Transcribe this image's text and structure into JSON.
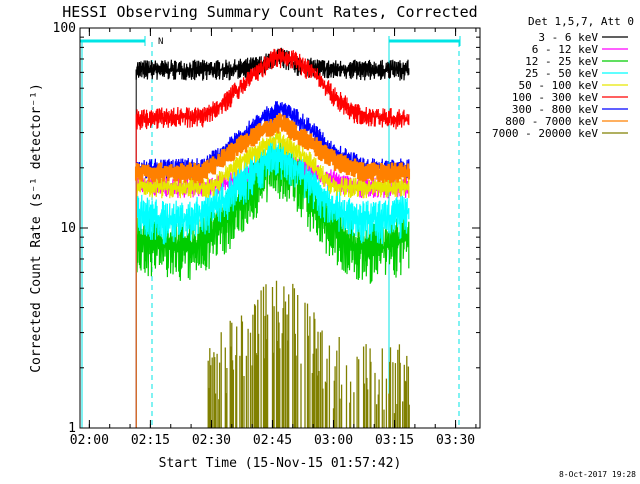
{
  "chart_data": {
    "type": "line",
    "title": "HESSI Observing Summary Count Rates, Corrected",
    "xlabel": "Start Time (15-Nov-15 01:57:42)",
    "ylabel": "Corrected Count Rate (s⁻¹ detector⁻¹)",
    "y_scale": "log",
    "xlim": [
      "01:57:42",
      "03:36:00"
    ],
    "ylim": [
      1,
      100
    ],
    "x_ticks": [
      "02:00",
      "02:15",
      "02:30",
      "02:45",
      "03:00",
      "03:15",
      "03:30"
    ],
    "y_ticks": [
      "1",
      "10",
      "100"
    ],
    "legend_title": "Det 1,5,7, Att 0",
    "legend_placement": "outside-right",
    "footer_date": "8-Oct-2017 19:28",
    "flag_label": "N",
    "grid": false,
    "series": [
      {
        "name": "3 - 6 keV",
        "color": "#000000",
        "x": [
          "02:11:30",
          "02:20:00",
          "02:35:00",
          "02:42:00",
          "02:47:00",
          "02:52:00",
          "03:00:00",
          "03:10:00",
          "03:18:30"
        ],
        "values": [
          62,
          62,
          62,
          65,
          72,
          64,
          62,
          62,
          62
        ]
      },
      {
        "name": "6 - 12 keV",
        "color": "#ff00ff",
        "x": [
          "02:11:30",
          "02:20:00",
          "02:30:00",
          "02:38:00",
          "02:45:00",
          "02:50:00",
          "02:58:00",
          "03:05:00",
          "03:18:30"
        ],
        "values": [
          17,
          16,
          16,
          18,
          22,
          21,
          18,
          16,
          16
        ]
      },
      {
        "name": "12 - 25 keV",
        "color": "#00cc00",
        "x": [
          "02:11:30",
          "02:18:00",
          "02:25:00",
          "02:33:00",
          "02:40:00",
          "02:46:00",
          "02:52:00",
          "02:58:00",
          "03:05:00",
          "03:12:00",
          "03:18:30"
        ],
        "values": [
          9,
          8.5,
          8,
          11,
          16,
          22,
          17,
          11,
          8,
          8,
          9
        ]
      },
      {
        "name": "25 - 50 keV",
        "color": "#00ffff",
        "x": [
          "02:11:30",
          "02:18:00",
          "02:25:00",
          "02:33:00",
          "02:40:00",
          "02:46:00",
          "02:52:00",
          "02:58:00",
          "03:05:00",
          "03:12:00",
          "03:18:30"
        ],
        "values": [
          12,
          11,
          11,
          14,
          19,
          24,
          19,
          14,
          11,
          11,
          12
        ]
      },
      {
        "name": "50 - 100 keV",
        "color": "#e6e600",
        "x": [
          "02:11:30",
          "02:20:00",
          "02:30:00",
          "02:38:00",
          "02:46:00",
          "02:54:00",
          "03:00:00",
          "03:10:00",
          "03:18:30"
        ],
        "values": [
          16,
          16,
          16,
          22,
          28,
          22,
          16,
          16,
          16
        ]
      },
      {
        "name": "100 - 300 keV",
        "color": "#ff0000",
        "x": [
          "02:11:30",
          "02:20:00",
          "02:28:00",
          "02:34:00",
          "02:40:00",
          "02:45:00",
          "02:49:00",
          "02:55:00",
          "03:00:00",
          "03:05:00",
          "03:10:00",
          "03:18:30"
        ],
        "values": [
          35,
          36,
          36,
          44,
          58,
          70,
          72,
          60,
          46,
          38,
          36,
          35
        ]
      },
      {
        "name": "300 - 800 keV",
        "color": "#0000ff",
        "x": [
          "02:11:30",
          "02:20:00",
          "02:28:00",
          "02:36:00",
          "02:43:00",
          "02:47:00",
          "02:53:00",
          "03:00:00",
          "03:08:00",
          "03:18:30"
        ],
        "values": [
          20,
          20,
          20,
          27,
          36,
          40,
          33,
          24,
          20,
          20
        ]
      },
      {
        "name": "800 - 7000 keV",
        "color": "#ff8000",
        "x": [
          "02:11:30",
          "02:20:00",
          "02:28:00",
          "02:36:00",
          "02:43:00",
          "02:47:00",
          "02:53:00",
          "03:00:00",
          "03:08:00",
          "03:18:30"
        ],
        "values": [
          19,
          19,
          19,
          25,
          31,
          34,
          28,
          22,
          19,
          19
        ]
      },
      {
        "name": "7000 - 20000 keV",
        "color": "#808000",
        "x": [
          "02:31:00",
          "02:35:00",
          "02:38:00",
          "02:42:00",
          "02:46:00",
          "02:50:00",
          "02:53:00",
          "02:57:00",
          "03:00:00"
        ],
        "values": [
          1.9,
          2.4,
          3.0,
          3.6,
          4.0,
          3.6,
          3.0,
          2.4,
          1.9
        ]
      }
    ]
  }
}
